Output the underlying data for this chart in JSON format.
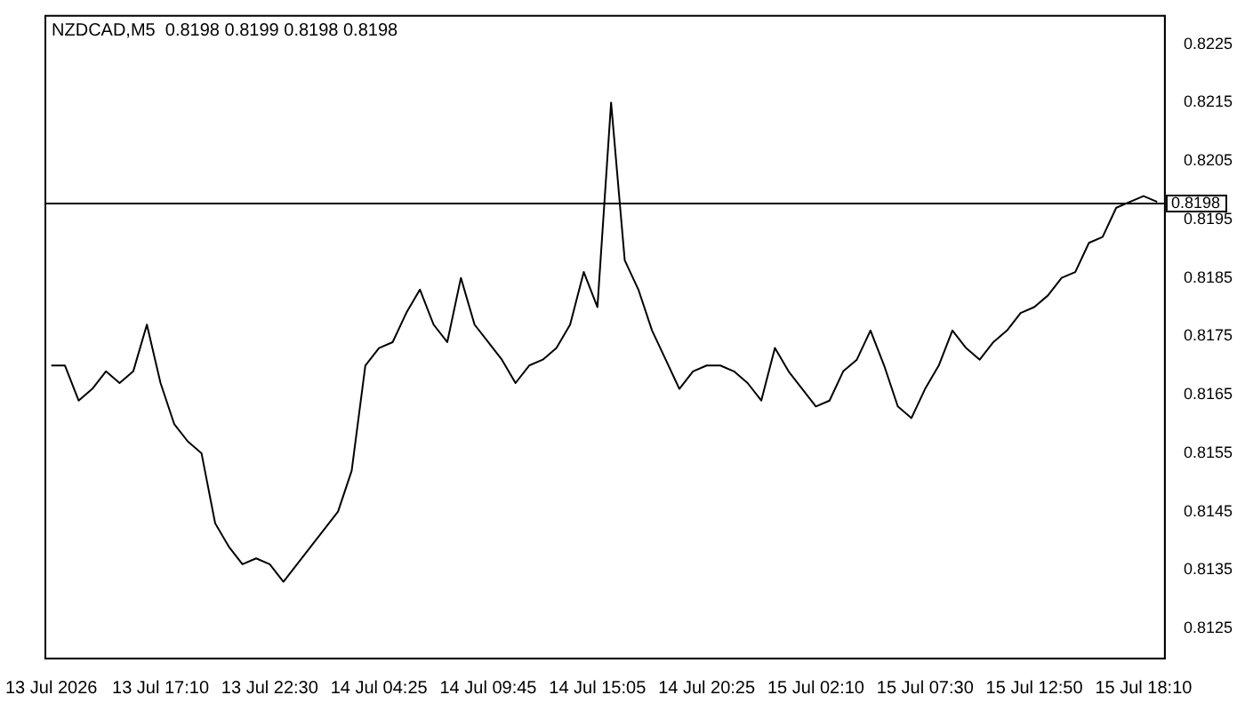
{
  "chart_data": {
    "type": "line",
    "title": "NZDCAD,M5  0.8198 0.8199 0.8198 0.8198",
    "categories": [
      "13 Jul 2026",
      null,
      null,
      null,
      null,
      null,
      null,
      null,
      "13 Jul 17:10",
      null,
      null,
      null,
      null,
      null,
      null,
      null,
      "13 Jul 22:30",
      null,
      null,
      null,
      null,
      null,
      null,
      null,
      "14 Jul 04:25",
      null,
      null,
      null,
      null,
      null,
      null,
      null,
      "14 Jul 09:45",
      null,
      null,
      null,
      null,
      null,
      null,
      null,
      "14 Jul 15:05",
      null,
      null,
      null,
      null,
      null,
      null,
      null,
      "14 Jul 20:25",
      null,
      null,
      null,
      null,
      null,
      null,
      null,
      "15 Jul 02:10",
      null,
      null,
      null,
      null,
      null,
      null,
      null,
      "15 Jul 07:30",
      null,
      null,
      null,
      null,
      null,
      null,
      null,
      "15 Jul 12:50",
      null,
      null,
      null,
      null,
      null,
      null,
      null,
      "15 Jul 18:10",
      null
    ],
    "series": [
      {
        "color": "#000000",
        "values": [
          0.817,
          0.817,
          0.8164,
          0.8166,
          0.8169,
          0.8167,
          0.8169,
          0.8177,
          0.8167,
          0.816,
          0.8157,
          0.8155,
          0.8143,
          0.8139,
          0.8136,
          0.8137,
          0.8136,
          0.8133,
          0.8136,
          0.8139,
          0.8142,
          0.8145,
          0.8152,
          0.817,
          0.8173,
          0.8174,
          0.8179,
          0.8183,
          0.8177,
          0.8174,
          0.8185,
          0.8177,
          0.8174,
          0.8171,
          0.8167,
          0.817,
          0.8171,
          0.8173,
          0.8177,
          0.8186,
          0.818,
          0.8215,
          0.8188,
          0.8183,
          0.8176,
          0.8171,
          0.8166,
          0.8169,
          0.817,
          0.817,
          0.8169,
          0.8167,
          0.8164,
          0.8173,
          0.8169,
          0.8166,
          0.8163,
          0.8164,
          0.8169,
          0.8171,
          0.8176,
          0.817,
          0.8163,
          0.8161,
          0.8166,
          0.817,
          0.8176,
          0.8173,
          0.8171,
          0.8174,
          0.8176,
          0.8179,
          0.818,
          0.8182,
          0.8185,
          0.8186,
          0.8191,
          0.8192,
          0.8197,
          0.8198,
          0.8199,
          0.8198
        ]
      }
    ],
    "ylim": [
      0.812,
      0.823
    ],
    "yticks": [
      0.8125,
      0.8135,
      0.8145,
      0.8155,
      0.8165,
      0.8175,
      0.8185,
      0.8195,
      0.8205,
      0.8215,
      0.8225
    ],
    "ref_lines": [
      {
        "axis": "y",
        "value": 0.8198,
        "label": "0.8198",
        "color": "#000000"
      }
    ],
    "grid": false,
    "legend": false,
    "marker": "none",
    "line_style": "solid"
  }
}
